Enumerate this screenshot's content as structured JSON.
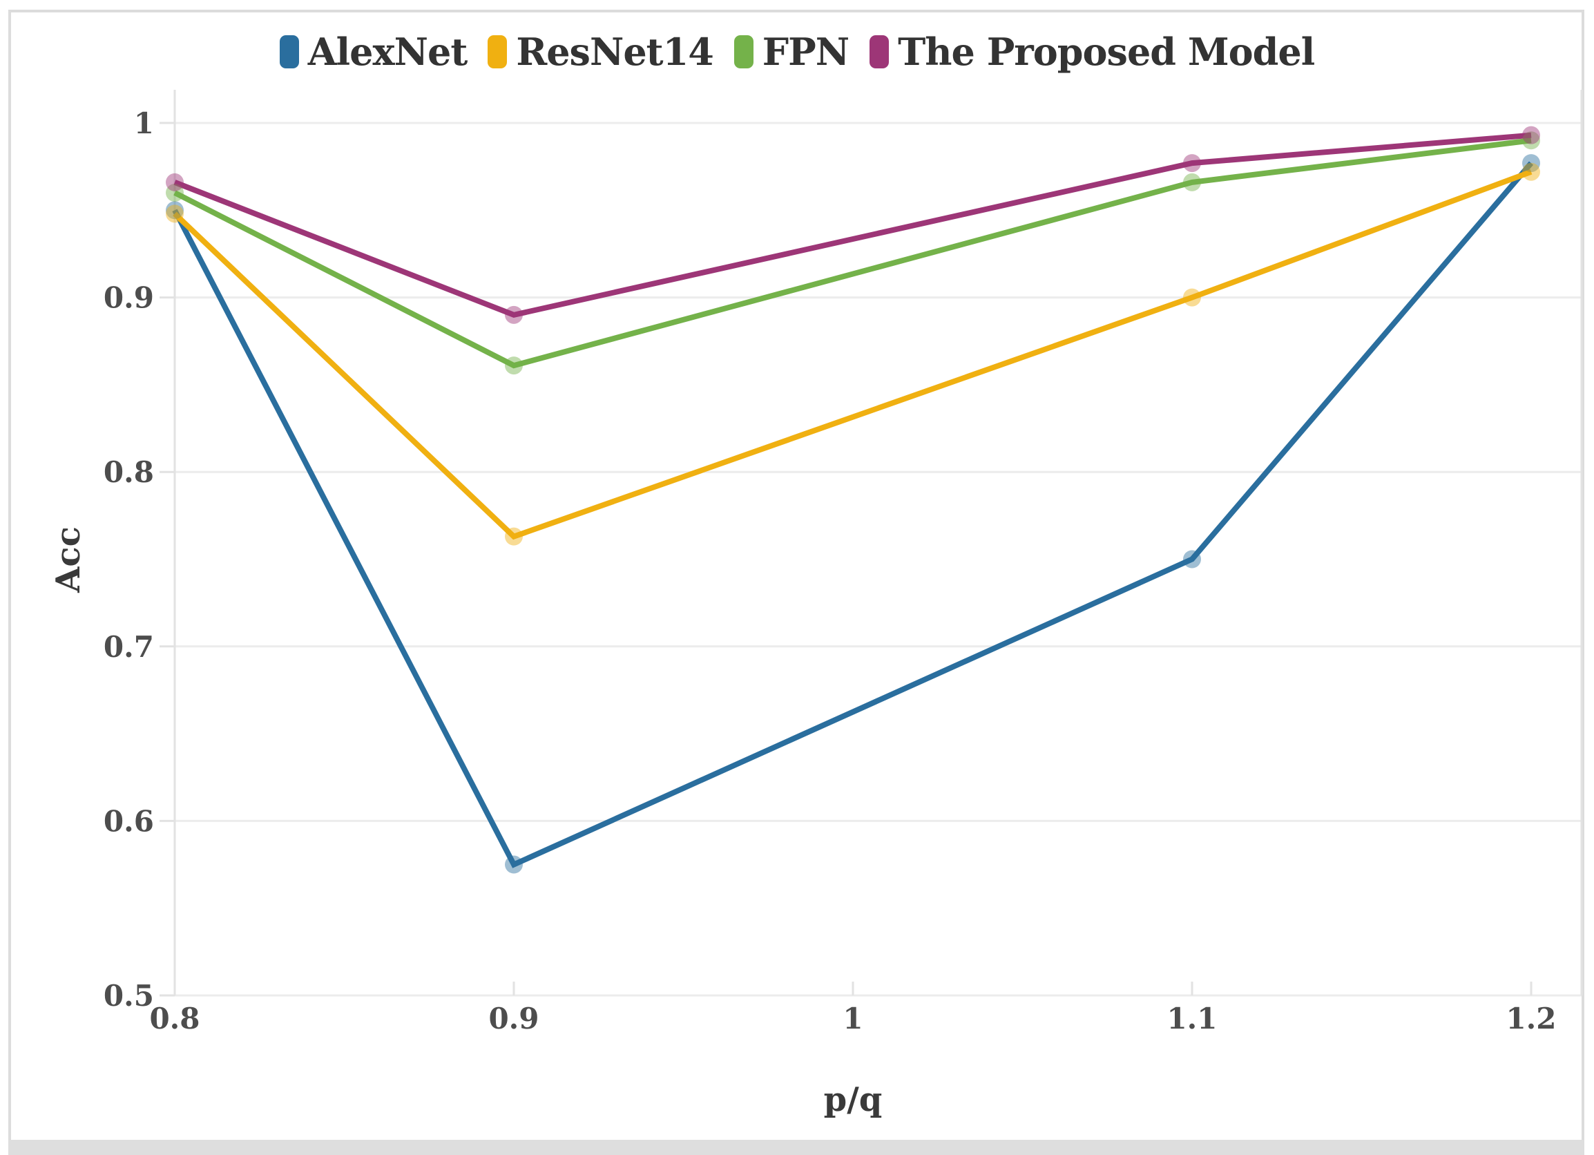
{
  "page": {
    "background": "#ffffff",
    "frame_color": "#dcdcdc",
    "bottom_bar_color": "#dedede"
  },
  "chart_data": {
    "type": "line",
    "title": "",
    "xlabel": "p/q",
    "ylabel": "Acc",
    "x": [
      0.8,
      0.9,
      1.1,
      1.2
    ],
    "xlim": [
      0.8,
      1.2
    ],
    "ylim": [
      0.5,
      1
    ],
    "x_ticks": [
      0.8,
      0.9,
      1,
      1.1,
      1.2
    ],
    "y_ticks": [
      0.5,
      0.6,
      0.7,
      0.8,
      0.9,
      1
    ],
    "grid": true,
    "legend_position": "top-center",
    "series": [
      {
        "name": "AlexNet",
        "color": "#2a6e9e",
        "values": [
          0.95,
          0.575,
          0.75,
          0.977
        ]
      },
      {
        "name": "ResNet14",
        "color": "#f0b011",
        "values": [
          0.948,
          0.763,
          0.9,
          0.972
        ]
      },
      {
        "name": "FPN",
        "color": "#74b24a",
        "values": [
          0.96,
          0.861,
          0.966,
          0.99
        ]
      },
      {
        "name": "The Proposed Model",
        "color": "#9d3677",
        "values": [
          0.966,
          0.89,
          0.977,
          0.993
        ]
      }
    ],
    "style": {
      "grid_color": "#ececec",
      "axis_color": "#e2e2e2",
      "tick_color": "#e2e2e2",
      "tick_label_color": "#4d4d4d",
      "axis_title_color": "#3a3a3a",
      "legend_text_color": "#333333",
      "line_width": 8,
      "marker_radius": 13,
      "marker_opacity": 0.45
    }
  }
}
